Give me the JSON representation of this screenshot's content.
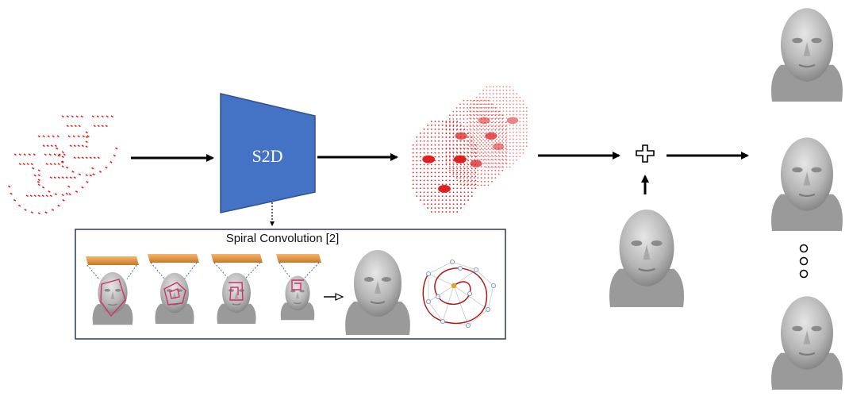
{
  "encoder": {
    "label": "S2D",
    "color": "#4472c4"
  },
  "spiral_panel": {
    "title": "Spiral Convolution [2]"
  },
  "colors": {
    "arrow": "#000000",
    "landmark": "#e02020",
    "face": "#b8b8b8",
    "plate": "#f0a050",
    "spiral": "#d0306a"
  },
  "outputs": {
    "ellipsis": "o o o"
  }
}
